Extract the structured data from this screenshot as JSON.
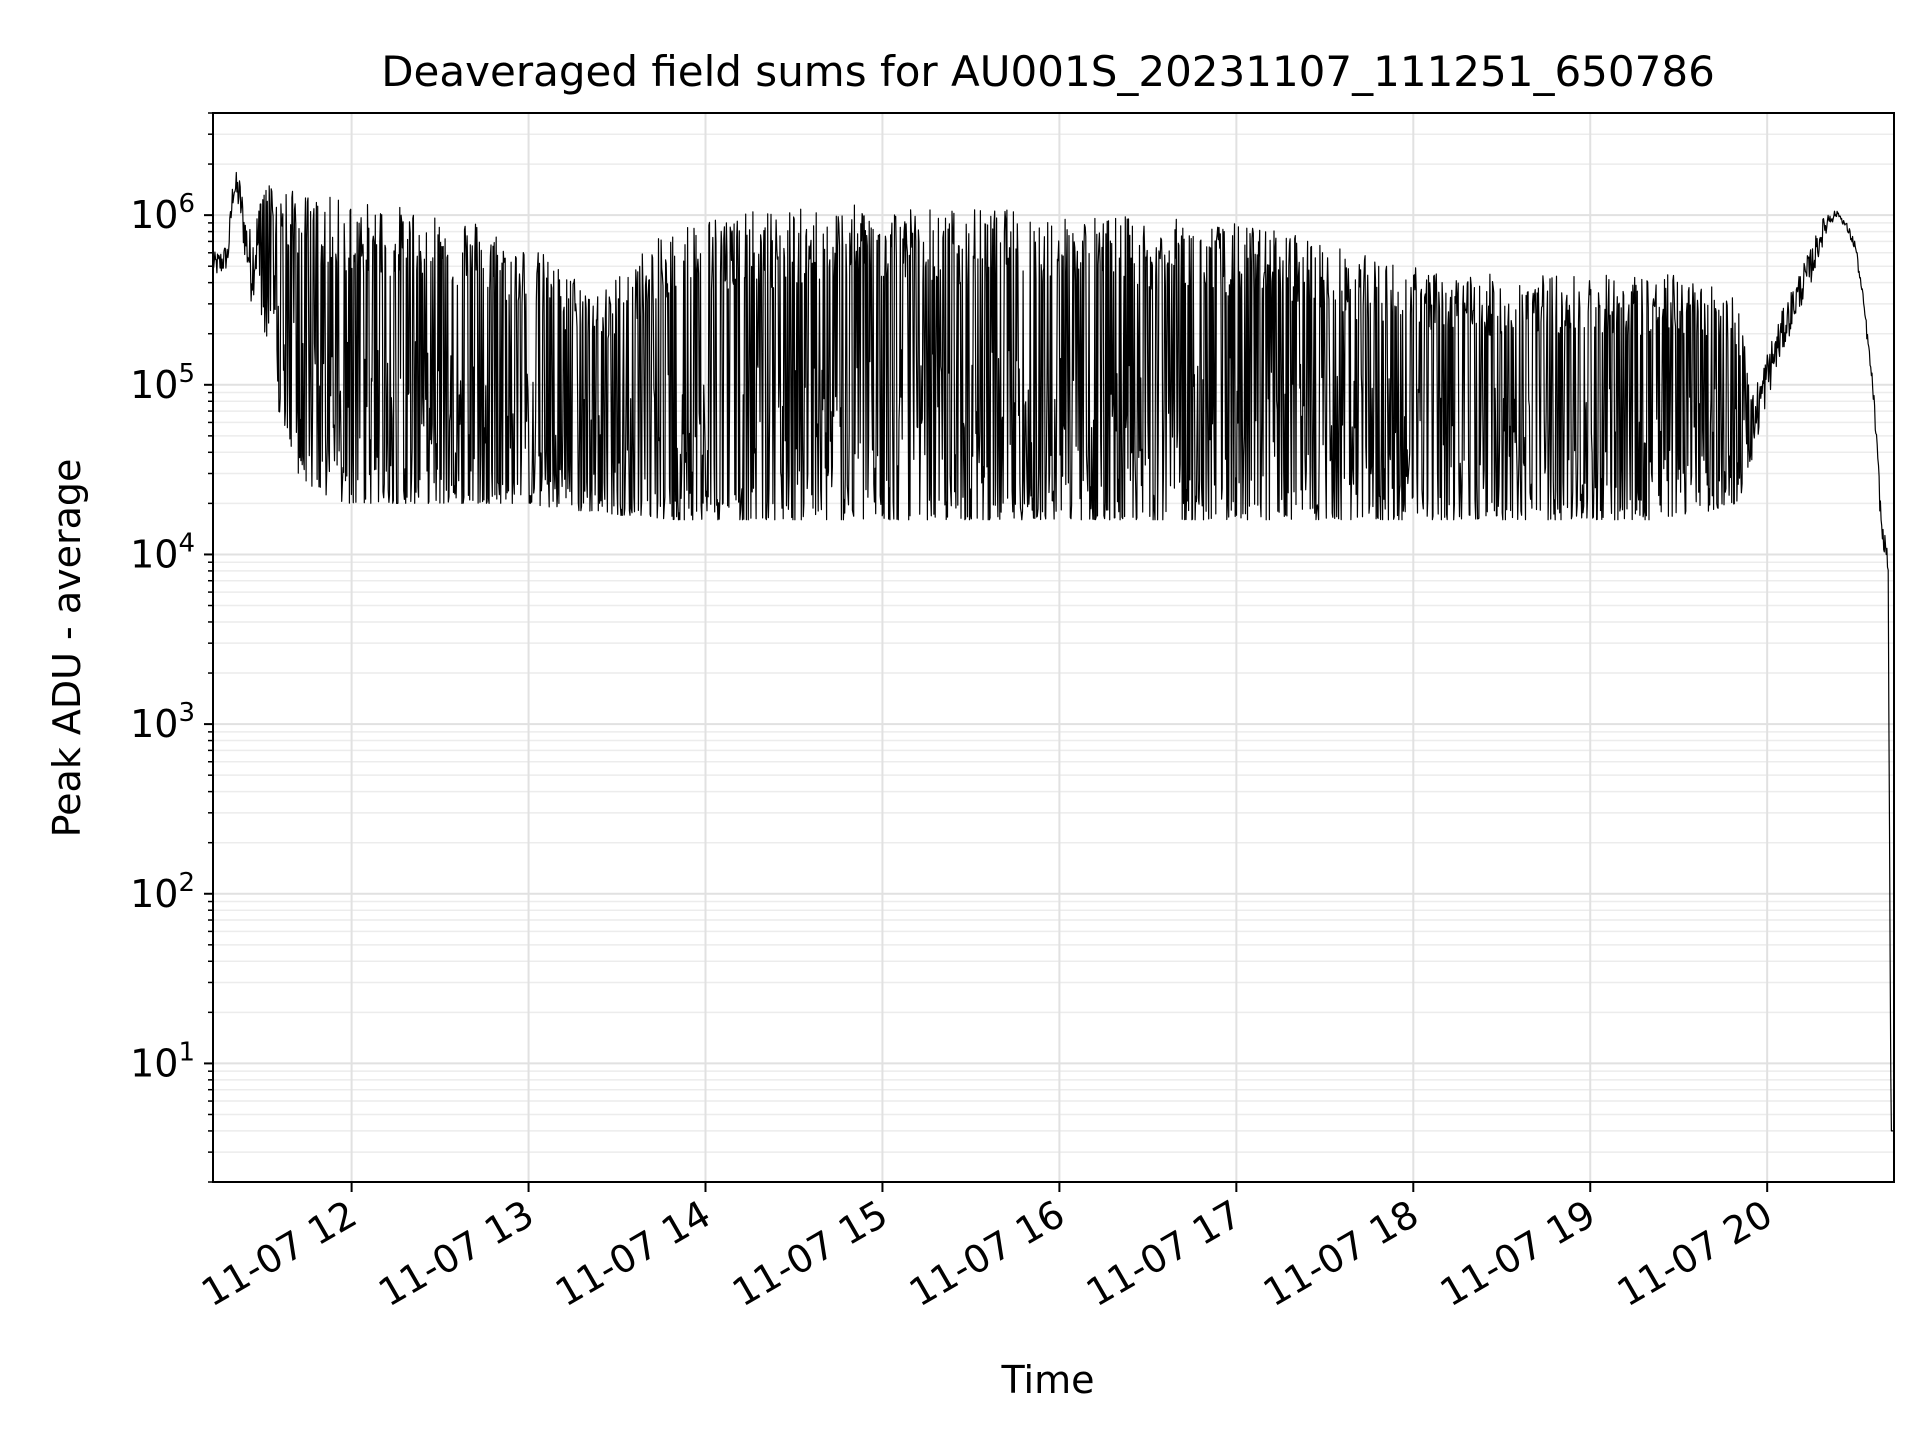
{
  "chart_data": {
    "type": "line",
    "title": "Deaveraged field sums for AU001S_20231107_111251_650786",
    "xlabel": "Time",
    "ylabel": "Peak ADU - average",
    "yscale": "log",
    "ylim": [
      2,
      4000000
    ],
    "xlim": [
      "2023-11-07 11:13",
      "2023-11-07 20:43"
    ],
    "grid": true,
    "x_tick_labels": [
      "11-07 12",
      "11-07 13",
      "11-07 14",
      "11-07 15",
      "11-07 16",
      "11-07 17",
      "11-07 18",
      "11-07 19",
      "11-07 20"
    ],
    "y_ticks": [
      {
        "base": "10",
        "exp": "1"
      },
      {
        "base": "10",
        "exp": "2"
      },
      {
        "base": "10",
        "exp": "3"
      },
      {
        "base": "10",
        "exp": "4"
      },
      {
        "base": "10",
        "exp": "5"
      },
      {
        "base": "10",
        "exp": "6"
      }
    ],
    "line_color": "#000000",
    "series": [
      {
        "x": [
          "2023-11-07 11:13",
          "2023-11-07 11:15",
          "2023-11-07 11:18",
          "2023-11-07 11:20",
          "2023-11-07 11:22",
          "2023-11-07 11:24",
          "2023-11-07 11:26",
          "2023-11-07 11:28",
          "2023-11-07 11:30",
          "2023-11-07 11:32",
          "2023-11-07 11:34",
          "2023-11-07 11:36",
          "2023-11-07 11:38",
          "2023-11-07 11:40",
          "2023-11-07 11:42",
          "2023-11-07 11:44",
          "2023-11-07 11:46",
          "2023-11-07 11:48",
          "2023-11-07 11:50",
          "2023-11-07 11:52",
          "2023-11-07 11:54",
          "2023-11-07 11:56",
          "2023-11-07 11:58",
          "2023-11-07 12:00",
          "2023-11-07 12:05",
          "2023-11-07 12:10",
          "2023-11-07 12:15",
          "2023-11-07 12:20",
          "2023-11-07 12:25",
          "2023-11-07 12:30",
          "2023-11-07 12:35",
          "2023-11-07 12:40",
          "2023-11-07 12:45",
          "2023-11-07 12:50",
          "2023-11-07 12:55",
          "2023-11-07 13:00",
          "2023-11-07 13:05",
          "2023-11-07 13:10",
          "2023-11-07 13:15",
          "2023-11-07 13:20",
          "2023-11-07 13:25",
          "2023-11-07 13:30",
          "2023-11-07 13:35",
          "2023-11-07 13:40",
          "2023-11-07 13:45",
          "2023-11-07 13:50",
          "2023-11-07 13:55",
          "2023-11-07 14:00",
          "2023-11-07 14:10",
          "2023-11-07 14:20",
          "2023-11-07 14:30",
          "2023-11-07 14:40",
          "2023-11-07 14:50",
          "2023-11-07 15:00",
          "2023-11-07 15:10",
          "2023-11-07 15:20",
          "2023-11-07 15:30",
          "2023-11-07 15:40",
          "2023-11-07 15:50",
          "2023-11-07 16:00",
          "2023-11-07 16:10",
          "2023-11-07 16:20",
          "2023-11-07 16:30",
          "2023-11-07 16:40",
          "2023-11-07 16:50",
          "2023-11-07 17:00",
          "2023-11-07 17:10",
          "2023-11-07 17:20",
          "2023-11-07 17:30",
          "2023-11-07 17:40",
          "2023-11-07 17:50",
          "2023-11-07 18:00",
          "2023-11-07 18:10",
          "2023-11-07 18:20",
          "2023-11-07 18:30",
          "2023-11-07 18:40",
          "2023-11-07 18:50",
          "2023-11-07 19:00",
          "2023-11-07 19:10",
          "2023-11-07 19:20",
          "2023-11-07 19:30",
          "2023-11-07 19:40",
          "2023-11-07 19:50",
          "2023-11-07 19:55",
          "2023-11-07 20:00",
          "2023-11-07 20:05",
          "2023-11-07 20:10",
          "2023-11-07 20:15",
          "2023-11-07 20:18",
          "2023-11-07 20:21",
          "2023-11-07 20:24",
          "2023-11-07 20:27",
          "2023-11-07 20:30",
          "2023-11-07 20:33",
          "2023-11-07 20:36",
          "2023-11-07 20:38",
          "2023-11-07 20:39",
          "2023-11-07 20:40",
          "2023-11-07 20:41",
          "2023-11-07 20:42",
          "2023-11-07 20:43"
        ],
        "upper": [
          600000,
          620000,
          700000,
          1900000,
          1700000,
          1100000,
          800000,
          1200000,
          1600000,
          1550000,
          1600000,
          1500000,
          1450000,
          1400000,
          1350000,
          1350000,
          1300000,
          1300000,
          1300000,
          1300000,
          1250000,
          1250000,
          1250000,
          1250000,
          1200000,
          1200000,
          1150000,
          1100000,
          1100000,
          1050000,
          1000000,
          1000000,
          900000,
          800000,
          700000,
          650000,
          600000,
          500000,
          450000,
          400000,
          350000,
          450000,
          550000,
          650000,
          750000,
          850000,
          950000,
          1000000,
          1050000,
          1050000,
          1100000,
          1100000,
          1150000,
          1150000,
          1150000,
          1100000,
          1100000,
          1100000,
          1050000,
          1050000,
          1000000,
          1000000,
          950000,
          950000,
          900000,
          900000,
          850000,
          800000,
          700000,
          600000,
          550000,
          500000,
          450000,
          450000,
          450000,
          450000,
          450000,
          450000,
          450000,
          450000,
          450000,
          400000,
          350000,
          90000,
          160000,
          270000,
          430000,
          650000,
          900000,
          1100000,
          1050000,
          900000,
          700000,
          300000,
          100000,
          30000,
          15000,
          13000,
          10000,
          4,
          4
        ],
        "lower": [
          450000,
          420000,
          480000,
          1200000,
          1000000,
          500000,
          300000,
          400000,
          200000,
          120000,
          90000,
          60000,
          45000,
          35000,
          30000,
          28000,
          25000,
          25000,
          22000,
          22000,
          22000,
          20000,
          20000,
          20000,
          20000,
          20000,
          20000,
          20000,
          20000,
          20000,
          20000,
          20000,
          20000,
          20000,
          20000,
          20000,
          19000,
          19000,
          18000,
          18000,
          18000,
          17000,
          17000,
          17000,
          16000,
          16000,
          16000,
          16000,
          16000,
          16000,
          16000,
          16000,
          16000,
          16000,
          16000,
          16000,
          16000,
          16000,
          16000,
          16000,
          16000,
          16000,
          16000,
          16000,
          16000,
          16000,
          16000,
          16000,
          16000,
          16000,
          16000,
          16000,
          16000,
          16000,
          16000,
          16000,
          16000,
          16000,
          16000,
          16000,
          17000,
          18000,
          20000,
          35000,
          80000,
          150000,
          250000,
          400000,
          600000,
          850000,
          1000000,
          800000,
          600000,
          250000,
          80000,
          20000,
          11000,
          10000,
          8000,
          4,
          4
        ]
      }
    ]
  }
}
